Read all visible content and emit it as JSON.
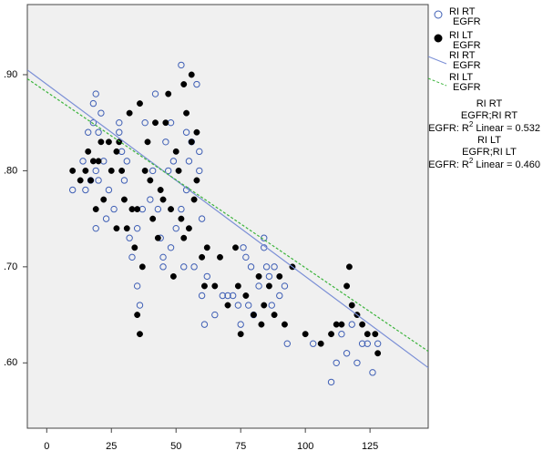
{
  "chart_data": {
    "type": "scatter",
    "xlim": [
      -7.5,
      147.5
    ],
    "ylim": [
      0.532,
      0.973
    ],
    "xticks": [
      0,
      25,
      50,
      75,
      100,
      125
    ],
    "yticks": [
      {
        "value": 0.6,
        "label": ".60"
      },
      {
        "value": 0.7,
        "label": ".70"
      },
      {
        "value": 0.8,
        "label": ".80"
      },
      {
        "value": 0.9,
        "label": ".90"
      }
    ],
    "series": [
      {
        "name_lines": [
          "RI RT",
          "EGFR"
        ],
        "color": "#3f5fb5",
        "marker": "open",
        "fit": {
          "intercept": 0.89,
          "slope": -0.002,
          "dash": false,
          "color": "#7b8fd6",
          "legend_lines": [
            "RI RT",
            "EGFR"
          ]
        },
        "x": [
          10,
          14,
          15,
          16,
          17,
          18,
          18,
          19,
          19,
          19,
          20,
          20,
          21,
          22,
          23,
          24,
          26,
          28,
          28,
          29,
          30,
          31,
          32,
          33,
          35,
          35,
          36,
          37,
          38,
          40,
          41,
          42,
          43,
          44,
          45,
          45,
          46,
          47,
          48,
          48,
          49,
          50,
          52,
          52,
          53,
          54,
          54,
          55,
          56,
          57,
          58,
          59,
          59,
          60,
          60,
          61,
          62,
          65,
          68,
          70,
          72,
          74,
          75,
          76,
          77,
          78,
          79,
          80,
          82,
          84,
          84,
          85,
          86,
          87,
          88,
          90,
          92,
          93,
          103,
          110,
          112,
          114,
          116,
          118,
          120,
          122,
          124,
          126,
          128
        ],
        "values": [
          0.78,
          0.81,
          0.78,
          0.84,
          0.79,
          0.87,
          0.85,
          0.88,
          0.8,
          0.74,
          0.84,
          0.79,
          0.86,
          0.81,
          0.75,
          0.78,
          0.76,
          0.85,
          0.84,
          0.82,
          0.79,
          0.81,
          0.73,
          0.71,
          0.68,
          0.74,
          0.66,
          0.76,
          0.85,
          0.77,
          0.8,
          0.88,
          0.76,
          0.73,
          0.71,
          0.7,
          0.83,
          0.8,
          0.72,
          0.85,
          0.81,
          0.74,
          0.91,
          0.76,
          0.7,
          0.84,
          0.78,
          0.81,
          0.83,
          0.7,
          0.89,
          0.82,
          0.8,
          0.75,
          0.67,
          0.64,
          0.69,
          0.65,
          0.67,
          0.67,
          0.67,
          0.66,
          0.64,
          0.72,
          0.71,
          0.66,
          0.7,
          0.65,
          0.68,
          0.73,
          0.72,
          0.7,
          0.69,
          0.66,
          0.7,
          0.67,
          0.68,
          0.62,
          0.62,
          0.58,
          0.6,
          0.63,
          0.61,
          0.64,
          0.6,
          0.62,
          0.62,
          0.59,
          0.62
        ]
      },
      {
        "name_lines": [
          "RI LT",
          "EGFR"
        ],
        "color": "#000000",
        "marker": "filled",
        "fit": {
          "intercept": 0.882,
          "slope": -0.00183,
          "dash": true,
          "color": "#3cb43c",
          "legend_lines": [
            "RI LT",
            "EGFR"
          ]
        },
        "x": [
          10,
          13,
          15,
          16,
          17,
          18,
          19,
          20,
          21,
          22,
          24,
          25,
          27,
          27,
          28,
          29,
          30,
          31,
          32,
          33,
          34,
          35,
          35,
          36,
          36,
          37,
          38,
          39,
          40,
          41,
          42,
          43,
          44,
          45,
          46,
          47,
          48,
          49,
          50,
          51,
          52,
          53,
          53,
          54,
          55,
          56,
          56,
          57,
          58,
          58,
          60,
          61,
          62,
          65,
          67,
          70,
          73,
          74,
          75,
          77,
          80,
          82,
          83,
          84,
          86,
          88,
          90,
          92,
          95,
          100,
          106,
          110,
          112,
          114,
          116,
          117,
          118,
          120,
          122,
          124,
          127,
          128
        ],
        "values": [
          0.8,
          0.79,
          0.8,
          0.82,
          0.79,
          0.81,
          0.76,
          0.81,
          0.83,
          0.77,
          0.83,
          0.8,
          0.74,
          0.82,
          0.83,
          0.8,
          0.77,
          0.74,
          0.86,
          0.76,
          0.72,
          0.65,
          0.76,
          0.87,
          0.63,
          0.7,
          0.8,
          0.83,
          0.79,
          0.75,
          0.85,
          0.73,
          0.78,
          0.77,
          0.85,
          0.88,
          0.76,
          0.69,
          0.82,
          0.8,
          0.75,
          0.89,
          0.73,
          0.86,
          0.74,
          0.9,
          0.83,
          0.77,
          0.79,
          0.84,
          0.71,
          0.68,
          0.72,
          0.68,
          0.71,
          0.66,
          0.72,
          0.68,
          0.63,
          0.67,
          0.65,
          0.69,
          0.64,
          0.66,
          0.68,
          0.65,
          0.69,
          0.64,
          0.7,
          0.63,
          0.62,
          0.63,
          0.64,
          0.64,
          0.68,
          0.7,
          0.66,
          0.65,
          0.64,
          0.63,
          0.63,
          0.61
        ]
      }
    ],
    "annotations": [
      {
        "lines": [
          "RI RT",
          "EGFR;RI RT"
        ],
        "r2": {
          "prefix": "EGFR: R",
          "sup": "2",
          "suffix": " Linear = 0.532"
        }
      },
      {
        "lines": [
          "RI LT",
          "EGFR;RI LT"
        ],
        "r2": {
          "prefix": "EGFR: R",
          "sup": "2",
          "suffix": " Linear = 0.460"
        }
      }
    ]
  }
}
